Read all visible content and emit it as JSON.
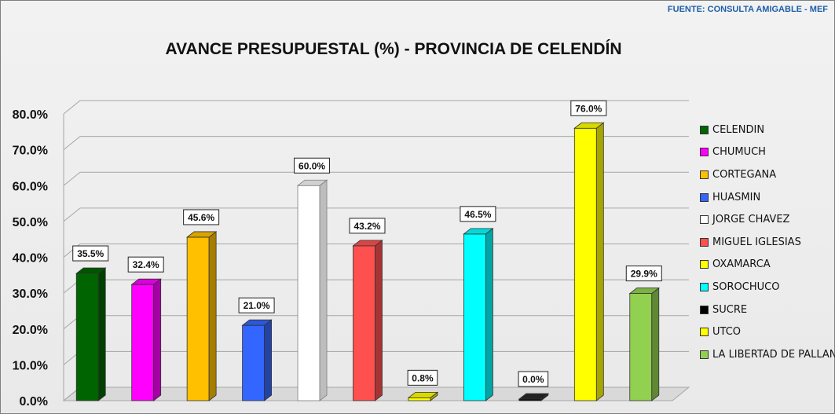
{
  "source": "FUENTE:  CONSULTA AMIGABLE  - MEF",
  "chart_data": {
    "type": "bar",
    "title": "AVANCE PRESUPUESTAL (%) - PROVINCIA DE CELENDÍN",
    "categories": [
      "CELENDIN",
      "CHUMUCH",
      "CORTEGANA",
      "HUASMIN",
      "JORGE CHAVEZ",
      "MIGUEL IGLESIAS",
      "OXAMARCA",
      "SOROCHUCO",
      "SUCRE",
      "UTCO",
      "LA LIBERTAD DE PALLAN"
    ],
    "values": [
      35.5,
      32.4,
      45.6,
      21.0,
      60.0,
      43.2,
      0.8,
      46.5,
      0.0,
      76.0,
      29.9
    ],
    "data_labels": [
      "35.5%",
      "32.4%",
      "45.6%",
      "21.0%",
      "60.0%",
      "43.2%",
      "0.8%",
      "46.5%",
      "0.0%",
      "76.0%",
      "29.9%"
    ],
    "colors": [
      "#006400",
      "#ff00ff",
      "#ffc000",
      "#3366ff",
      "#ffffff",
      "#ff5050",
      "#ffff00",
      "#00ffff",
      "#000000",
      "#ffff00",
      "#92d050"
    ],
    "ylim": [
      0,
      80
    ],
    "yticks": [
      0,
      10,
      20,
      30,
      40,
      50,
      60,
      70,
      80
    ],
    "ytick_labels": [
      "0.0%",
      "10.0%",
      "20.0%",
      "30.0%",
      "40.0%",
      "50.0%",
      "60.0%",
      "70.0%",
      "80.0%"
    ],
    "grid": true,
    "legend": "right"
  }
}
